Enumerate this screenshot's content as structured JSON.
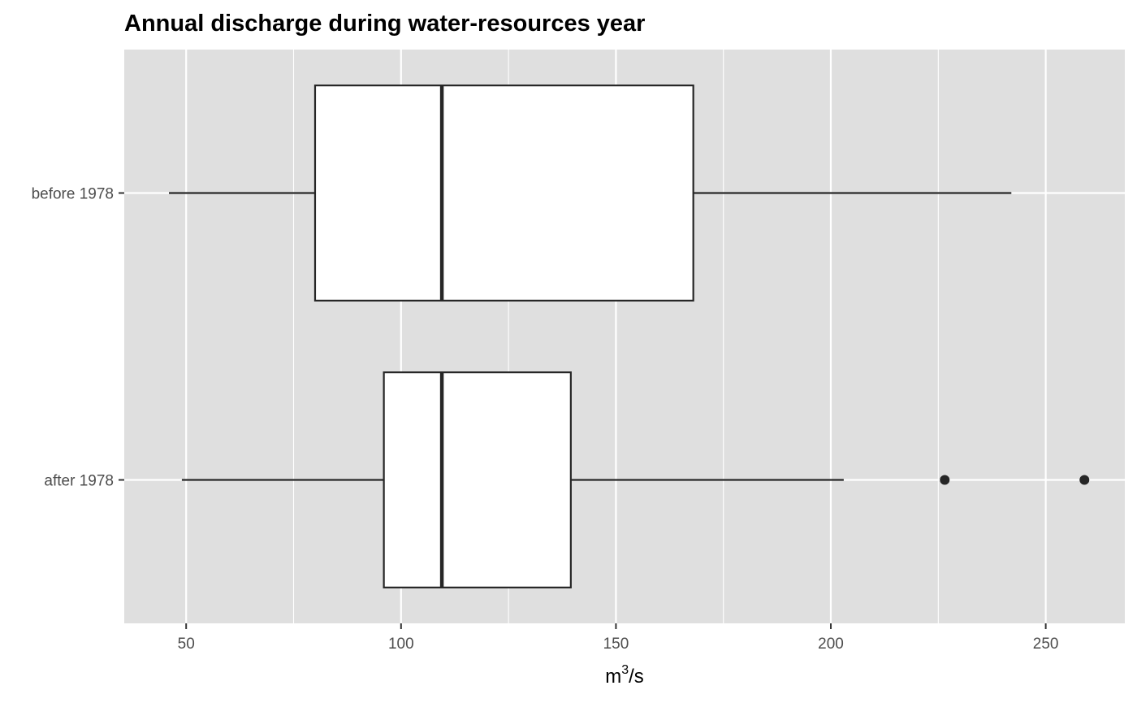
{
  "chart_data": {
    "type": "boxplot",
    "orientation": "horizontal",
    "title": "Annual discharge during water-resources year",
    "xlabel": {
      "base": "m",
      "superscript": "3",
      "suffix": "/s"
    },
    "ylabel": "",
    "xlim": [
      35.6,
      268.4
    ],
    "x_ticks": [
      50,
      100,
      150,
      200,
      250
    ],
    "x_minor": [
      75,
      125,
      175,
      225
    ],
    "categories": [
      "before 1978",
      "after 1978"
    ],
    "boxes": [
      {
        "label": "before 1978",
        "whisker_low": 46,
        "q1": 80,
        "median": 109.5,
        "q3": 168,
        "whisker_high": 242,
        "outliers": []
      },
      {
        "label": "after 1978",
        "whisker_low": 49,
        "q1": 96,
        "median": 109.5,
        "q3": 139.5,
        "whisker_high": 203,
        "outliers": [
          226.5,
          259
        ]
      }
    ],
    "grid": true,
    "colors": {
      "panel": "#dfdfdf",
      "grid": "#ffffff",
      "box_fill": "#ffffff",
      "box_stroke": "#262626",
      "tick_text": "#4d4d4d"
    }
  }
}
